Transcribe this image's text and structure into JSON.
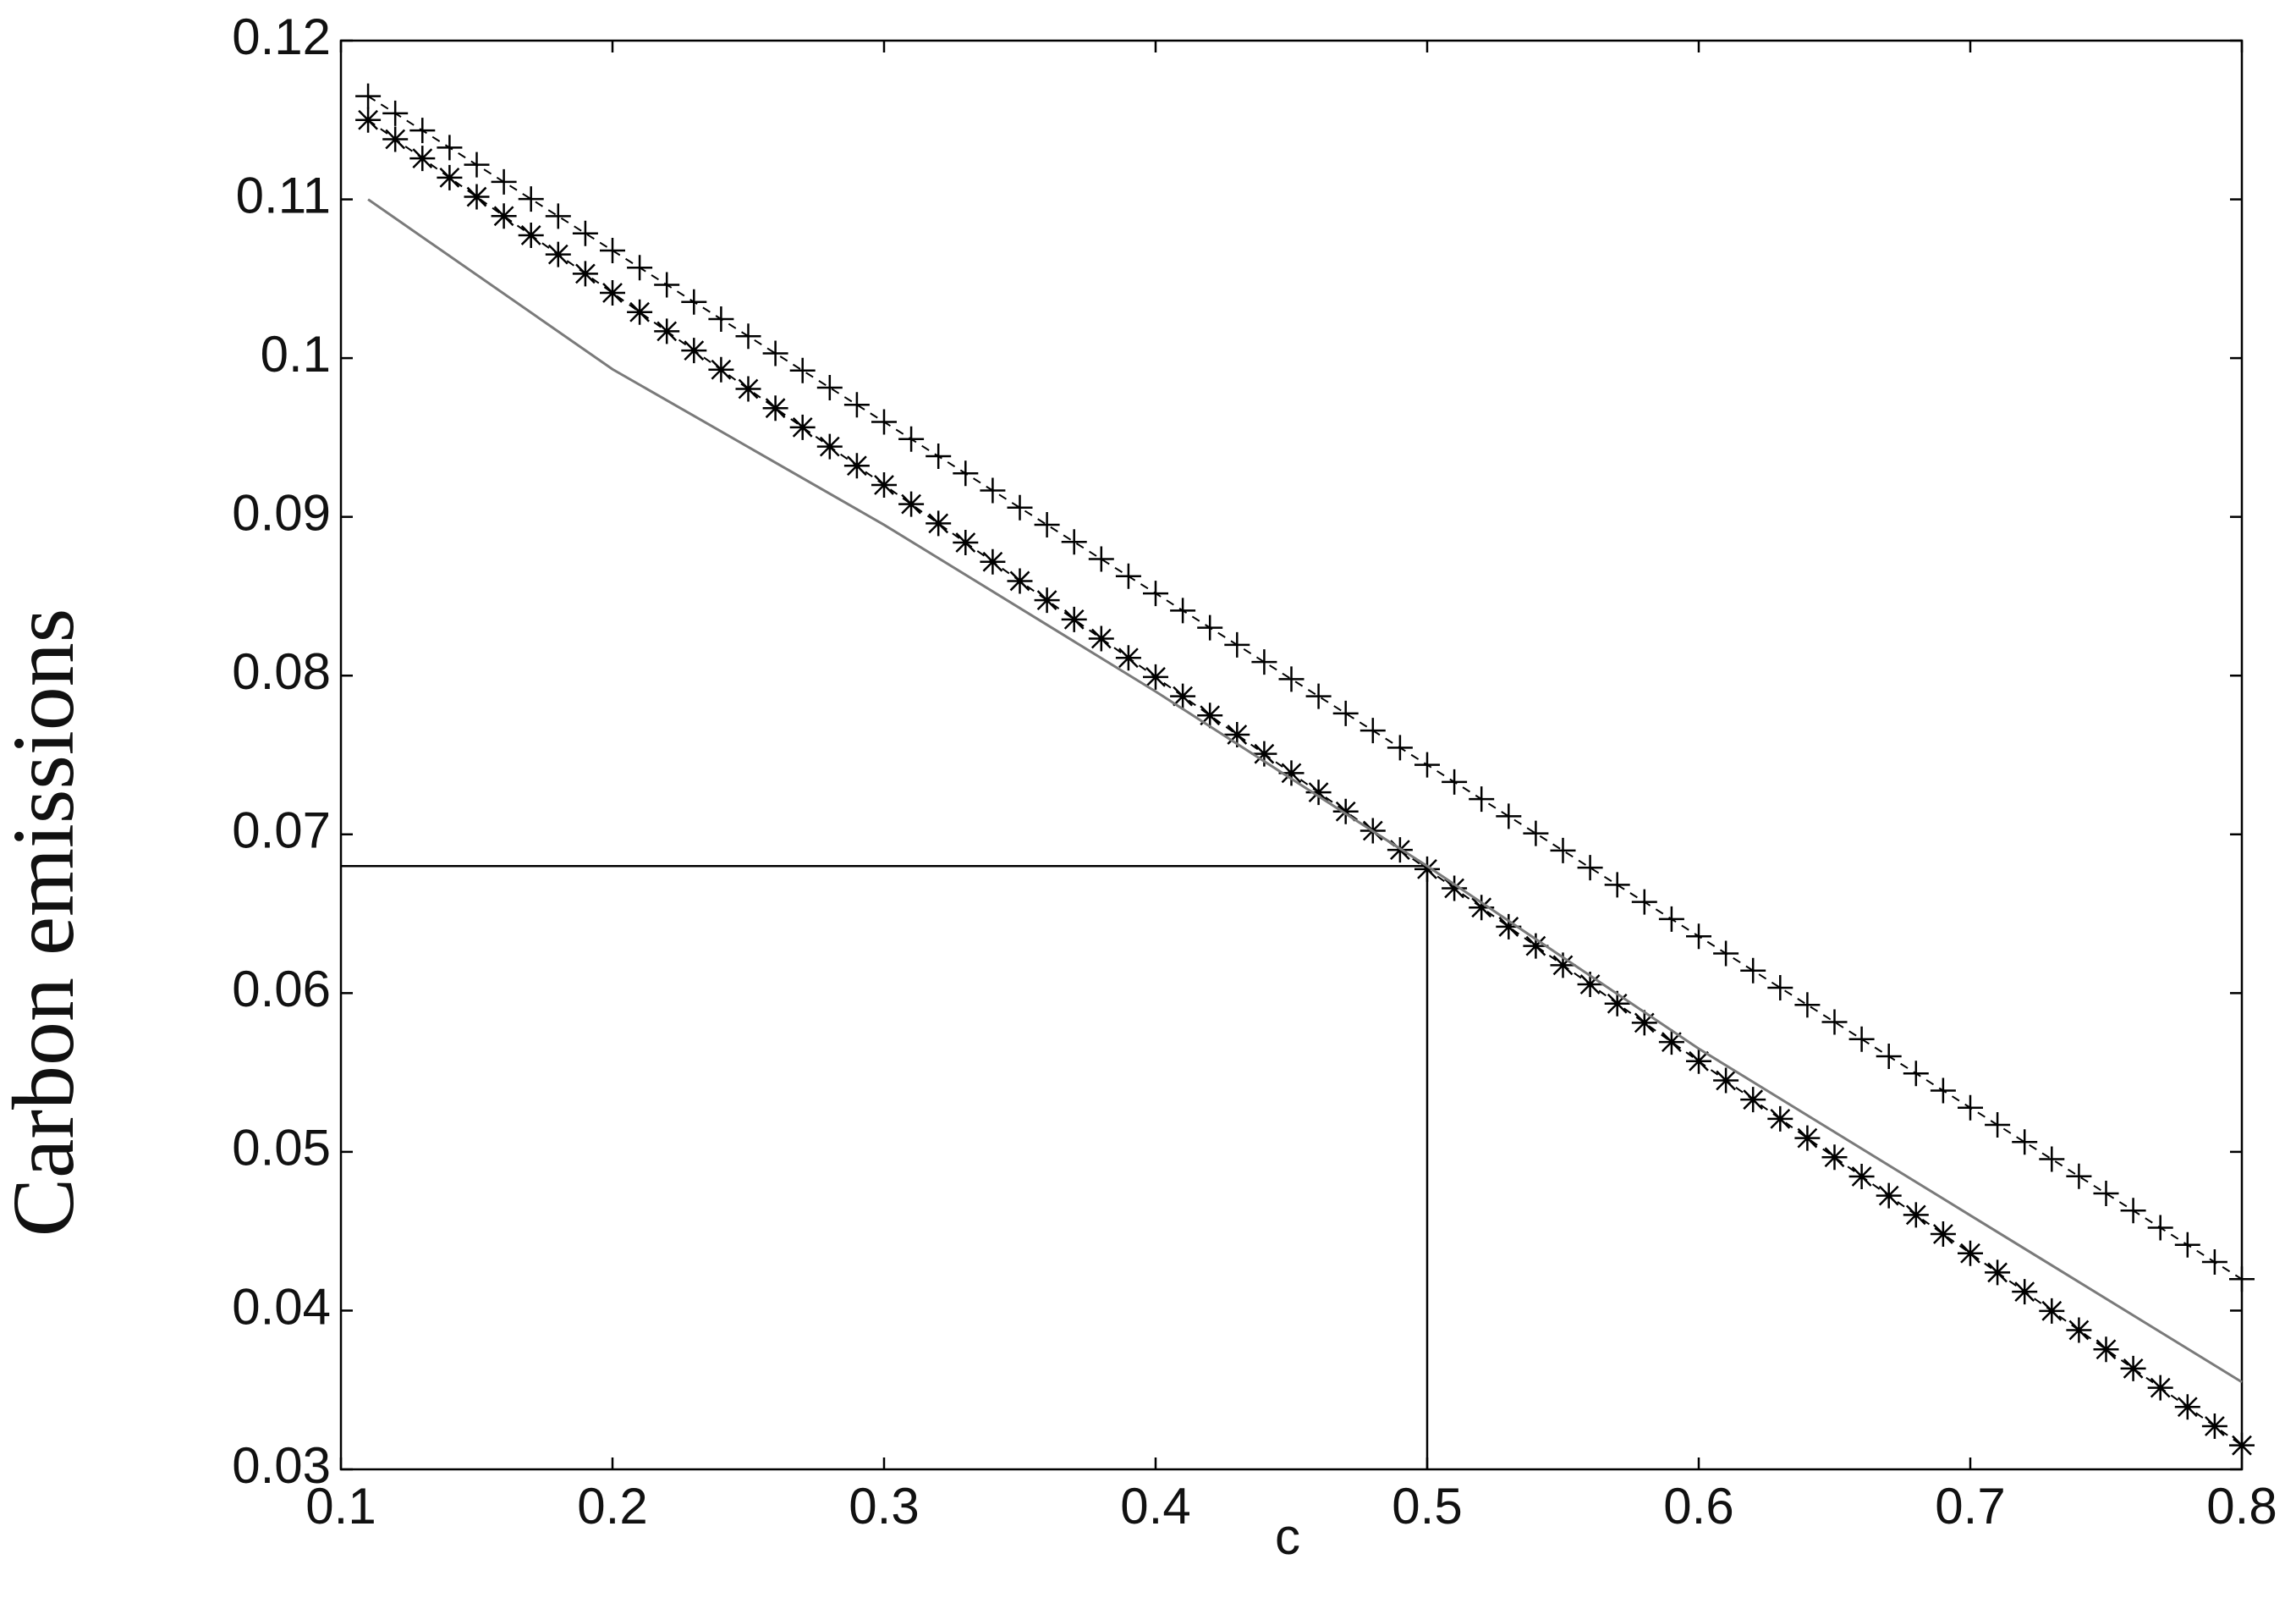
{
  "chart_data": {
    "type": "line",
    "xlabel": "c",
    "ylabel": "Carbon emissions",
    "xlim": [
      0.1,
      0.8
    ],
    "ylim": [
      0.03,
      0.12
    ],
    "xticks": [
      0.1,
      0.2,
      0.3,
      0.4,
      0.5,
      0.6,
      0.7,
      0.8
    ],
    "yticks": [
      0.03,
      0.04,
      0.05,
      0.06,
      0.07,
      0.08,
      0.09,
      0.1,
      0.11,
      0.12
    ],
    "grid": false,
    "reference_lines": {
      "x": 0.5,
      "y": 0.068,
      "color": "#000000"
    },
    "series": [
      {
        "color": "#000000",
        "marker": "+",
        "dashed": true,
        "x": [
          0.11,
          0.12,
          0.13,
          0.14,
          0.15,
          0.16,
          0.17,
          0.18,
          0.19,
          0.2,
          0.21,
          0.22,
          0.23,
          0.24,
          0.25,
          0.26,
          0.27,
          0.28,
          0.29,
          0.3,
          0.31,
          0.32,
          0.33,
          0.34,
          0.35,
          0.36,
          0.37,
          0.38,
          0.39,
          0.4,
          0.41,
          0.42,
          0.43,
          0.44,
          0.45,
          0.46,
          0.47,
          0.48,
          0.49,
          0.5,
          0.51,
          0.52,
          0.53,
          0.54,
          0.55,
          0.56,
          0.57,
          0.58,
          0.59,
          0.6,
          0.61,
          0.62,
          0.63,
          0.64,
          0.65,
          0.66,
          0.67,
          0.68,
          0.69,
          0.7,
          0.71,
          0.72,
          0.73,
          0.74,
          0.75,
          0.76,
          0.77,
          0.78,
          0.79,
          0.8
        ],
        "values": [
          0.1165,
          0.11542,
          0.11434,
          0.11326,
          0.11218,
          0.1111,
          0.11002,
          0.10894,
          0.10786,
          0.10678,
          0.1057,
          0.10462,
          0.10354,
          0.10246,
          0.10138,
          0.1003,
          0.09922,
          0.09814,
          0.09706,
          0.09598,
          0.0949,
          0.09382,
          0.09274,
          0.09166,
          0.09058,
          0.0895,
          0.08842,
          0.08734,
          0.08626,
          0.08518,
          0.0841,
          0.08302,
          0.08194,
          0.08086,
          0.07978,
          0.0787,
          0.07762,
          0.07654,
          0.07546,
          0.07438,
          0.0733,
          0.07222,
          0.07114,
          0.07006,
          0.06898,
          0.0679,
          0.06682,
          0.06574,
          0.06466,
          0.06358,
          0.0625,
          0.06142,
          0.06034,
          0.05926,
          0.05818,
          0.0571,
          0.05602,
          0.05494,
          0.05386,
          0.05278,
          0.0517,
          0.05062,
          0.04954,
          0.04846,
          0.04738,
          0.0463,
          0.04522,
          0.04414,
          0.04306,
          0.04198
        ]
      },
      {
        "color": "#000000",
        "marker": "*",
        "dashed": true,
        "x": [
          0.11,
          0.12,
          0.13,
          0.14,
          0.15,
          0.16,
          0.17,
          0.18,
          0.19,
          0.2,
          0.21,
          0.22,
          0.23,
          0.24,
          0.25,
          0.26,
          0.27,
          0.28,
          0.29,
          0.3,
          0.31,
          0.32,
          0.33,
          0.34,
          0.35,
          0.36,
          0.37,
          0.38,
          0.39,
          0.4,
          0.41,
          0.42,
          0.43,
          0.44,
          0.45,
          0.46,
          0.47,
          0.48,
          0.49,
          0.5,
          0.51,
          0.52,
          0.53,
          0.54,
          0.55,
          0.56,
          0.57,
          0.58,
          0.59,
          0.6,
          0.61,
          0.62,
          0.63,
          0.64,
          0.65,
          0.66,
          0.67,
          0.68,
          0.69,
          0.7,
          0.71,
          0.72,
          0.73,
          0.74,
          0.75,
          0.76,
          0.77,
          0.78,
          0.79,
          0.8
        ],
        "values": [
          0.115,
          0.11379,
          0.11258,
          0.11137,
          0.11016,
          0.10895,
          0.10774,
          0.10653,
          0.10532,
          0.10411,
          0.1029,
          0.10169,
          0.10048,
          0.09927,
          0.09806,
          0.09685,
          0.09564,
          0.09443,
          0.09322,
          0.09201,
          0.0908,
          0.08959,
          0.08838,
          0.08717,
          0.08596,
          0.08475,
          0.08354,
          0.08233,
          0.08112,
          0.07991,
          0.0787,
          0.07749,
          0.07628,
          0.07507,
          0.07386,
          0.07265,
          0.07144,
          0.07023,
          0.06902,
          0.06781,
          0.0666,
          0.06539,
          0.06418,
          0.06297,
          0.06176,
          0.06055,
          0.05934,
          0.05813,
          0.05692,
          0.05571,
          0.0545,
          0.05329,
          0.05208,
          0.05087,
          0.04966,
          0.04845,
          0.04724,
          0.04603,
          0.04482,
          0.04361,
          0.0424,
          0.04119,
          0.03998,
          0.03877,
          0.03756,
          0.03635,
          0.03514,
          0.03393,
          0.03272,
          0.03151
        ]
      },
      {
        "color": "#7a7a7a",
        "marker": null,
        "dashed": false,
        "x": [
          0.11,
          0.2,
          0.3,
          0.4,
          0.5,
          0.6,
          0.7,
          0.8
        ],
        "values": [
          0.11,
          0.0993,
          0.0895,
          0.079,
          0.068,
          0.0565,
          0.046,
          0.0355
        ]
      }
    ]
  }
}
